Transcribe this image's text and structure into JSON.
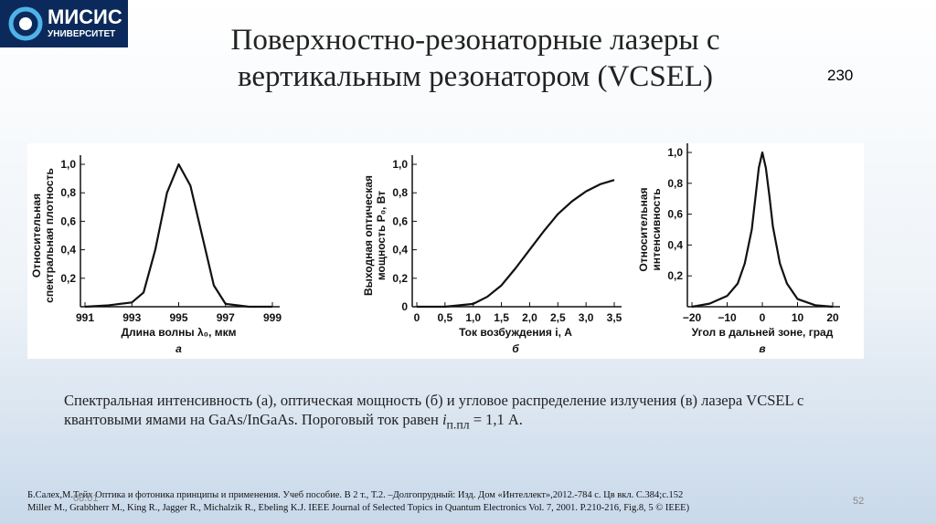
{
  "logo": {
    "name": "МИСИС",
    "subtitle": "УНИВЕРСИТЕТ"
  },
  "title": [
    "Поверхностно-резонаторные лазеры с",
    "вертикальным резонатором (VCSEL)"
  ],
  "page_ref": "230",
  "charts": [
    {
      "type": "line",
      "ylabel": [
        "Относительная",
        "спектральная плотность"
      ],
      "xlabel": "Длина волны λ₀, мкм",
      "panel": "а",
      "xlim": [
        991,
        999
      ],
      "xticks": [
        991,
        993,
        995,
        997,
        999
      ],
      "ylim": [
        0,
        1
      ],
      "yticks": [
        {
          "value": 0.2,
          "label": "0,2"
        },
        {
          "value": 0.4,
          "label": "0,4"
        },
        {
          "value": 0.6,
          "label": "0,6"
        },
        {
          "value": 0.8,
          "label": "0,8"
        },
        {
          "value": 1,
          "label": "1,0"
        }
      ],
      "x": [
        991,
        992,
        993,
        993.5,
        994,
        994.5,
        995,
        995.5,
        996,
        996.5,
        997,
        998,
        999
      ],
      "values": [
        0,
        0.01,
        0.03,
        0.1,
        0.4,
        0.8,
        1.0,
        0.85,
        0.5,
        0.15,
        0.02,
        0,
        0
      ]
    },
    {
      "type": "line",
      "ylabel": [
        "Выходная оптическая",
        "мощность P₀, Вт"
      ],
      "xlabel": "Ток возбуждения i, А",
      "panel": "б",
      "xlim": [
        0,
        3.5
      ],
      "xticks": [
        0,
        {
          "value": 0.5,
          "label": "0,5"
        },
        {
          "value": 1,
          "label": "1,0"
        },
        {
          "value": 1.5,
          "label": "1,5"
        },
        {
          "value": 2,
          "label": "2,0"
        },
        {
          "value": 2.5,
          "label": "2,5"
        },
        {
          "value": 3,
          "label": "3,0"
        },
        {
          "value": 3.5,
          "label": "3,5"
        }
      ],
      "ylim": [
        0,
        1
      ],
      "yticks": [
        0,
        {
          "value": 0.2,
          "label": "0,2"
        },
        {
          "value": 0.4,
          "label": "0,4"
        },
        {
          "value": 0.6,
          "label": "0,6"
        },
        {
          "value": 0.8,
          "label": "0,8"
        },
        {
          "value": 1,
          "label": "1,0"
        }
      ],
      "x": [
        0,
        0.5,
        1.0,
        1.25,
        1.5,
        1.75,
        2.0,
        2.25,
        2.5,
        2.75,
        3.0,
        3.25,
        3.5
      ],
      "values": [
        0,
        0,
        0.02,
        0.07,
        0.15,
        0.27,
        0.4,
        0.53,
        0.65,
        0.74,
        0.81,
        0.86,
        0.89
      ]
    },
    {
      "type": "line",
      "ylabel": [
        "Относительная",
        "интенсивность"
      ],
      "xlabel": "Угол в дальней зоне, град",
      "panel": "в",
      "xlim": [
        -20,
        20
      ],
      "xticks": [
        {
          "value": -20,
          "label": "−20"
        },
        {
          "value": -10,
          "label": "−10"
        },
        0,
        10,
        20
      ],
      "ylim": [
        0,
        1
      ],
      "yticks": [
        {
          "value": 0.2,
          "label": "0,2"
        },
        {
          "value": 0.4,
          "label": "0,4"
        },
        {
          "value": 0.6,
          "label": "0,6"
        },
        {
          "value": 0.8,
          "label": "0,8"
        },
        {
          "value": 1,
          "label": "1,0"
        }
      ],
      "x": [
        -20,
        -15,
        -10,
        -7,
        -5,
        -3,
        -2,
        -1,
        0,
        1,
        2,
        3,
        5,
        7,
        10,
        15,
        20
      ],
      "values": [
        0,
        0.02,
        0.07,
        0.15,
        0.28,
        0.5,
        0.7,
        0.9,
        1.0,
        0.9,
        0.72,
        0.52,
        0.28,
        0.15,
        0.05,
        0.01,
        0
      ]
    }
  ],
  "caption": {
    "text": "Спектральная интенсивность (а), оптическая мощность (б) и угловое распределение излучения (в) лазера VCSEL с квантовыми ямами на GaAs/InGaAs.  Пороговый ток равен",
    "symbol": "i",
    "subscript": "п.пл",
    "tail": "= 1,1 А."
  },
  "references": [
    "Б.Салех,М.Тейх Оптика и фотоника принципы и применения. Учеб пособие. В 2 т., Т.2. –Долгопрудный: Изд. Дом «Интеллект»,2012.-784 с. Цв вкл. С.384;с.152",
    "Miller M., Grabbherr M., King R., Jagger R., Michalzik R., Ebeling K.J. IEEE Journal of Selected Topics in Quantum Electronics Vol. 7, 2001. P.210-216, Fig.8, 5 © IEEE)"
  ],
  "date": "08.01",
  "slide_number": "52"
}
